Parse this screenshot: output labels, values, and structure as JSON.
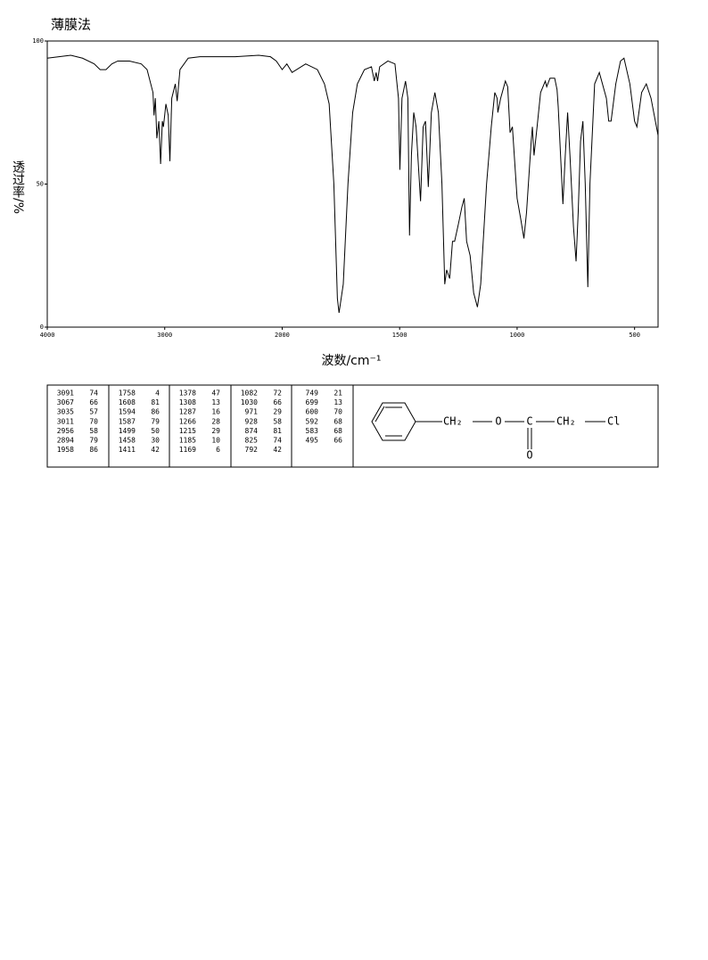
{
  "chart_data": {
    "type": "line",
    "title": "薄膜法",
    "x_label": "波数/cm⁻¹",
    "y_label": "透过率/%",
    "color": "#000000",
    "xlim": [
      4000,
      400
    ],
    "xticks": [
      4000,
      3000,
      2000,
      1500,
      1000,
      500
    ],
    "ylim": [
      0,
      100
    ],
    "yticks": [
      0,
      50,
      100
    ],
    "x": [
      4000,
      3900,
      3800,
      3700,
      3600,
      3550,
      3500,
      3450,
      3400,
      3300,
      3200,
      3150,
      3100,
      3091,
      3080,
      3067,
      3050,
      3035,
      3020,
      3011,
      2990,
      2970,
      2956,
      2940,
      2910,
      2894,
      2870,
      2800,
      2700,
      2500,
      2400,
      2200,
      2100,
      2050,
      2000,
      1980,
      1958,
      1900,
      1850,
      1820,
      1800,
      1780,
      1765,
      1758,
      1740,
      1720,
      1700,
      1680,
      1650,
      1620,
      1608,
      1600,
      1594,
      1585,
      1550,
      1520,
      1505,
      1499,
      1490,
      1475,
      1465,
      1458,
      1450,
      1440,
      1430,
      1411,
      1400,
      1390,
      1378,
      1365,
      1350,
      1335,
      1320,
      1308,
      1300,
      1287,
      1275,
      1266,
      1250,
      1235,
      1225,
      1215,
      1200,
      1185,
      1169,
      1155,
      1130,
      1110,
      1095,
      1085,
      1082,
      1070,
      1050,
      1040,
      1030,
      1020,
      1000,
      985,
      971,
      960,
      940,
      935,
      928,
      915,
      900,
      880,
      874,
      860,
      840,
      830,
      825,
      815,
      805,
      795,
      785,
      775,
      760,
      749,
      740,
      730,
      720,
      710,
      699,
      690,
      670,
      650,
      620,
      610,
      600,
      580,
      560,
      545,
      520,
      500,
      490,
      470,
      450,
      430,
      400
    ],
    "values": [
      94,
      94.5,
      95,
      94,
      92,
      90,
      90,
      92,
      93,
      93,
      92,
      90,
      82,
      74,
      80,
      66,
      72,
      57,
      72,
      70,
      78,
      74,
      58,
      80,
      85,
      79,
      90,
      94,
      94.5,
      94.5,
      94.5,
      95,
      94.5,
      93,
      90,
      92,
      89,
      92,
      90,
      85,
      78,
      50,
      10,
      5,
      15,
      50,
      75,
      85,
      90,
      91,
      86,
      89,
      86,
      91,
      93,
      92,
      80,
      55,
      80,
      86,
      80,
      32,
      60,
      75,
      70,
      44,
      70,
      72,
      49,
      75,
      82,
      75,
      50,
      15,
      20,
      17,
      30,
      30,
      36,
      42,
      45,
      30,
      25,
      12,
      7,
      15,
      50,
      70,
      82,
      80,
      75,
      80,
      86,
      84,
      68,
      70,
      45,
      38,
      31,
      40,
      65,
      70,
      60,
      70,
      82,
      86,
      84,
      87,
      87,
      83,
      77,
      60,
      43,
      60,
      75,
      60,
      35,
      23,
      40,
      65,
      72,
      50,
      14,
      50,
      85,
      89,
      80,
      72,
      72,
      85,
      93,
      94,
      85,
      72,
      70,
      82,
      85,
      80,
      67
    ]
  },
  "peak_table": {
    "columns": [
      [
        [
          3091,
          74
        ],
        [
          3067,
          66
        ],
        [
          3035,
          57
        ],
        [
          3011,
          70
        ],
        [
          2956,
          58
        ],
        [
          2894,
          79
        ],
        [
          1958,
          86
        ]
      ],
      [
        [
          1758,
          4
        ],
        [
          1608,
          81
        ],
        [
          1594,
          86
        ],
        [
          1587,
          79
        ],
        [
          1499,
          50
        ],
        [
          1458,
          30
        ],
        [
          1411,
          42
        ]
      ],
      [
        [
          1378,
          47
        ],
        [
          1308,
          13
        ],
        [
          1287,
          16
        ],
        [
          1266,
          28
        ],
        [
          1215,
          29
        ],
        [
          1185,
          10
        ],
        [
          1169,
          6
        ]
      ],
      [
        [
          1082,
          72
        ],
        [
          1030,
          66
        ],
        [
          971,
          29
        ],
        [
          928,
          58
        ],
        [
          874,
          81
        ],
        [
          825,
          74
        ],
        [
          792,
          42
        ]
      ],
      [
        [
          749,
          21
        ],
        [
          699,
          13
        ],
        [
          600,
          70
        ],
        [
          592,
          68
        ],
        [
          583,
          68
        ],
        [
          495,
          66
        ]
      ]
    ]
  },
  "structure": {
    "labels": [
      "CH₂",
      "O",
      "C",
      "CH₂",
      "Cl",
      "O"
    ]
  }
}
